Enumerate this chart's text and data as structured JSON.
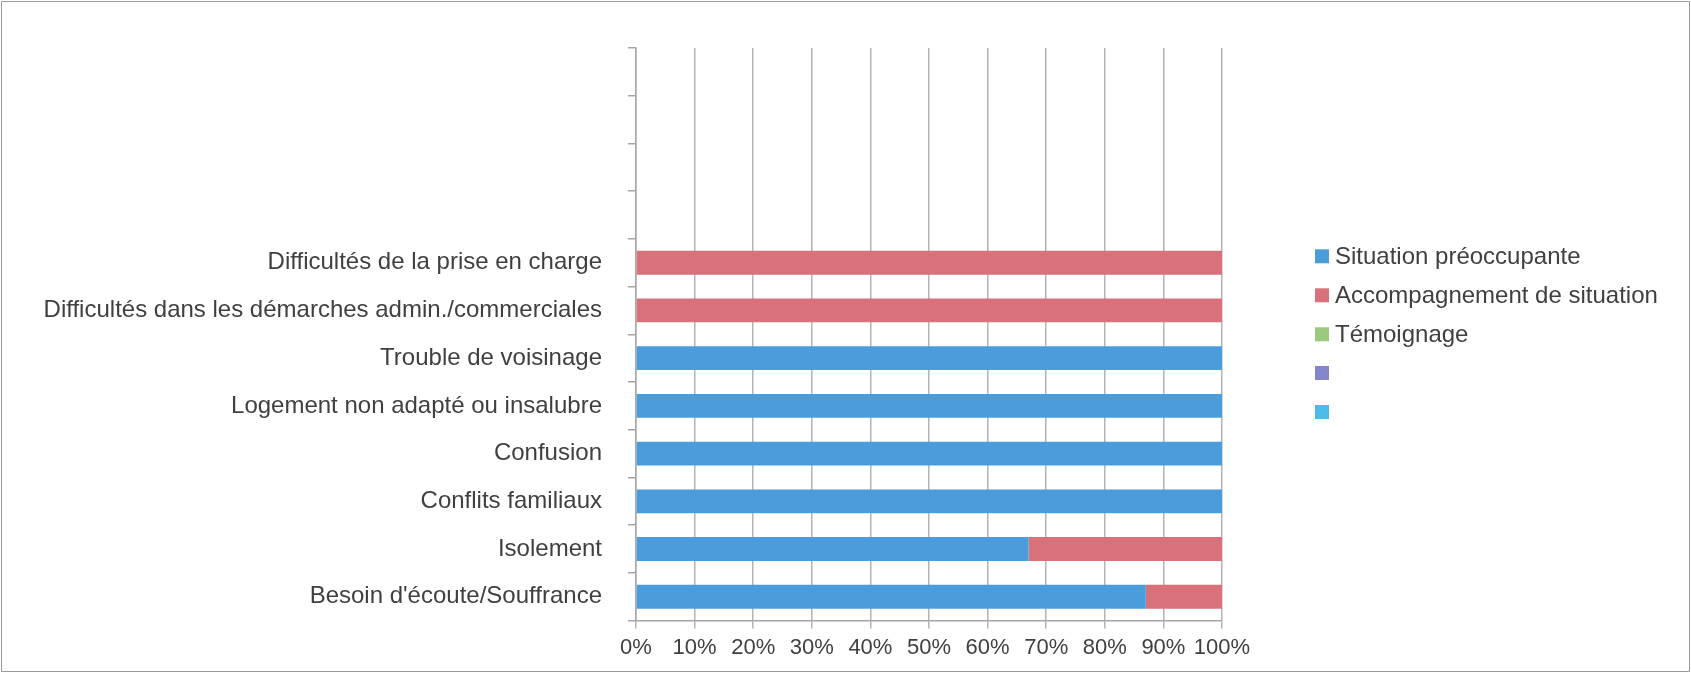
{
  "chart_data": {
    "type": "bar",
    "orientation": "horizontal",
    "stacked": true,
    "categories": [
      null,
      null,
      null,
      null,
      "Difficultés de la prise en charge",
      "Difficultés dans les démarches admin./commerciales",
      "Trouble de voisinage",
      "Logement non adapté ou insalubre",
      "Confusion",
      "Conflits familiaux",
      "Isolement",
      "Besoin d'écoute/Souffrance"
    ],
    "series": [
      {
        "name": "Situation préoccupante",
        "color": "#4a9cdb",
        "values": [
          null,
          null,
          null,
          null,
          null,
          null,
          100,
          100,
          100,
          100,
          67,
          87
        ]
      },
      {
        "name": "Accompagnement de situation",
        "color": "#d9717b",
        "values": [
          null,
          null,
          null,
          null,
          100,
          100,
          null,
          null,
          null,
          null,
          33,
          13
        ]
      },
      {
        "name": "Témoignage",
        "color": "#9bca7d",
        "values": [
          null,
          null,
          null,
          null,
          null,
          null,
          null,
          null,
          null,
          null,
          null,
          null
        ]
      },
      {
        "color": "#8585cc",
        "values": [
          null,
          null,
          null,
          null,
          null,
          null,
          null,
          null,
          null,
          null,
          null,
          null
        ]
      },
      {
        "color": "#4cbbe9",
        "values": [
          null,
          null,
          null,
          null,
          null,
          null,
          null,
          null,
          null,
          null,
          null,
          null
        ]
      }
    ],
    "xlim": [
      0,
      100
    ],
    "xticks": [
      {
        "value": 0,
        "label": "0%"
      },
      {
        "value": 10,
        "label": "10%"
      },
      {
        "value": 20,
        "label": "20%"
      },
      {
        "value": 30,
        "label": "30%"
      },
      {
        "value": 40,
        "label": "40%"
      },
      {
        "value": 50,
        "label": "50%"
      },
      {
        "value": 60,
        "label": "60%"
      },
      {
        "value": 70,
        "label": "70%"
      },
      {
        "value": 80,
        "label": "80%"
      },
      {
        "value": 90,
        "label": "90%"
      },
      {
        "value": 100,
        "label": "100%"
      }
    ],
    "grid": "x",
    "legend": "right"
  }
}
